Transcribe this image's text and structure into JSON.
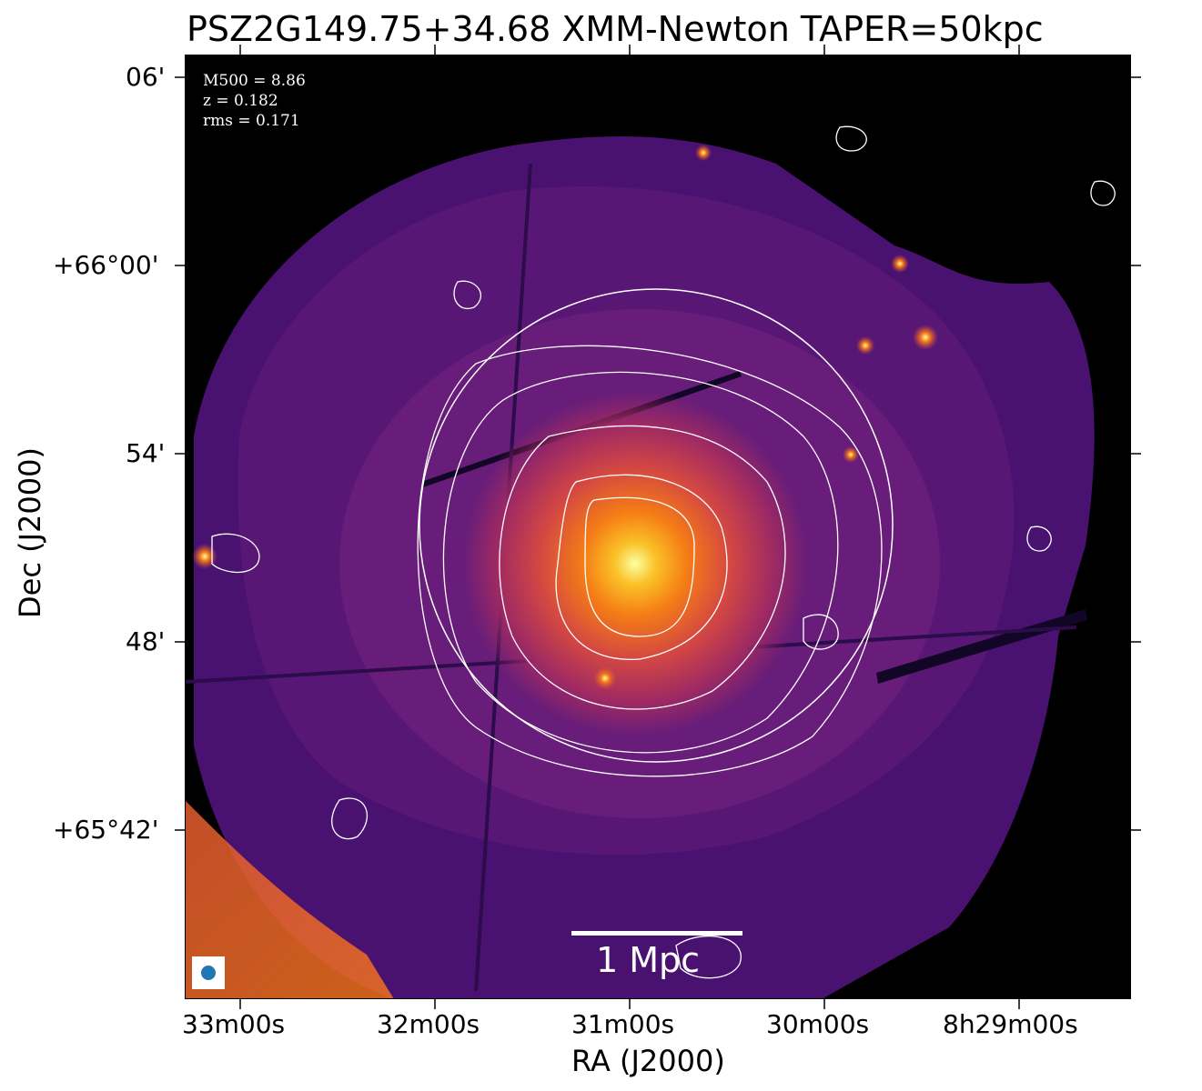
{
  "title": "PSZ2G149.75+34.68 XMM-Newton TAPER=50kpc",
  "annotations": {
    "m500": "M500 = 8.86",
    "z": "z = 0.182",
    "rms": "rms = 0.171"
  },
  "scalebar": {
    "label": "1 Mpc"
  },
  "axes": {
    "xlabel": "RA (J2000)",
    "ylabel": "Dec (J2000)",
    "xticks": [
      "33m00s",
      "32m00s",
      "31m00s",
      "30m00s",
      "8h29m00s"
    ],
    "yticks": [
      "06'",
      "+66°00'",
      "54'",
      "48'",
      "+65°42'"
    ]
  },
  "colors": {
    "colormap": "inferno",
    "contour": "#ffffff",
    "circle": "#ffffff",
    "beam": "#1f77b4",
    "background": "#000000"
  }
}
